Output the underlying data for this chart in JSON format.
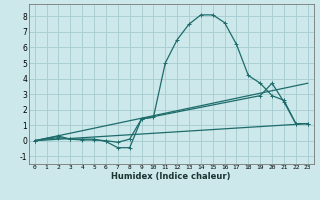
{
  "xlabel": "Humidex (Indice chaleur)",
  "bg_color": "#cce8ea",
  "grid_color": "#aacfd2",
  "line_color": "#1e6b6b",
  "xlim": [
    -0.5,
    23.5
  ],
  "ylim": [
    -1.5,
    8.8
  ],
  "yticks": [
    -1,
    0,
    1,
    2,
    3,
    4,
    5,
    6,
    7,
    8
  ],
  "xticks": [
    0,
    1,
    2,
    3,
    4,
    5,
    6,
    7,
    8,
    9,
    10,
    11,
    12,
    13,
    14,
    15,
    16,
    17,
    18,
    19,
    20,
    21,
    22,
    23
  ],
  "series1_x": [
    0,
    2,
    3,
    4,
    5,
    6,
    7,
    8,
    9,
    10,
    11,
    12,
    13,
    14,
    15,
    16,
    17,
    18,
    19,
    20,
    21,
    22,
    23
  ],
  "series1_y": [
    0.0,
    0.3,
    0.1,
    0.1,
    0.1,
    -0.05,
    -0.45,
    -0.45,
    1.4,
    1.5,
    5.0,
    6.5,
    7.5,
    8.1,
    8.1,
    7.6,
    6.2,
    4.2,
    3.7,
    2.9,
    2.6,
    1.1,
    1.1
  ],
  "series2_x": [
    0,
    2,
    3,
    4,
    5,
    6,
    7,
    8,
    9,
    19,
    20,
    21,
    22,
    23
  ],
  "series2_y": [
    0.0,
    0.2,
    0.1,
    0.05,
    0.05,
    0.0,
    -0.1,
    0.1,
    1.4,
    2.9,
    3.7,
    2.5,
    1.1,
    1.1
  ],
  "series3_x": [
    0,
    23
  ],
  "series3_y": [
    0.0,
    3.7
  ],
  "series4_x": [
    0,
    23
  ],
  "series4_y": [
    0.0,
    1.1
  ],
  "marker": "+",
  "markersize": 3.5,
  "linewidth": 0.9
}
